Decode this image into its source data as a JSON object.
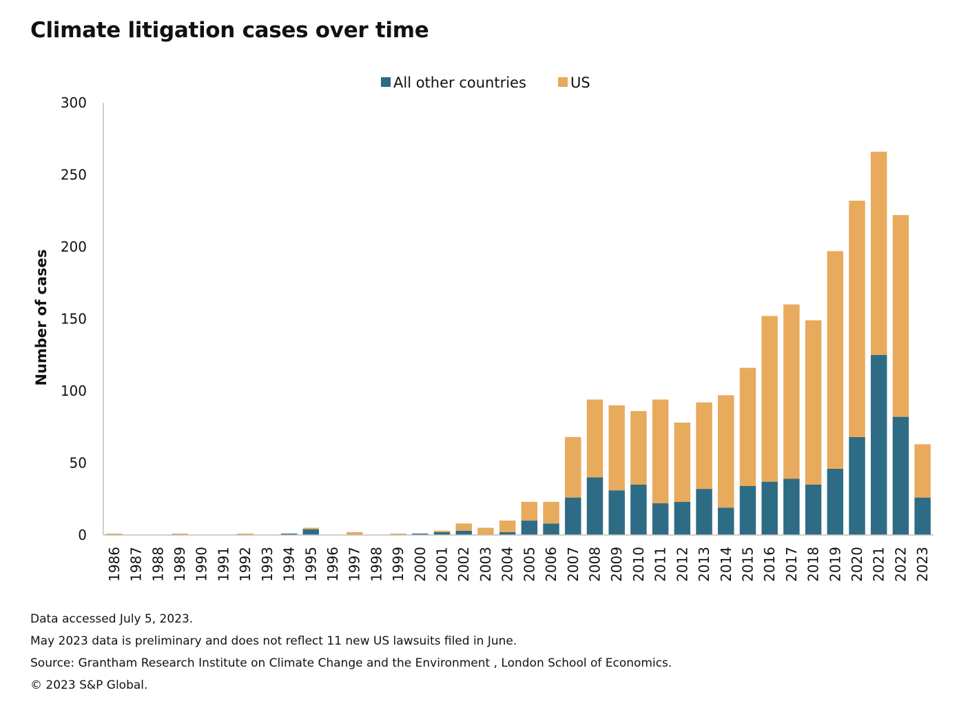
{
  "chart_data": {
    "type": "bar",
    "stacked": true,
    "title": "Climate litigation cases over time",
    "xlabel": "",
    "ylabel": "Number of cases",
    "ylim": [
      0,
      300
    ],
    "yticks": [
      0,
      50,
      100,
      150,
      200,
      250,
      300
    ],
    "legend_position": "top-center",
    "grid": false,
    "categories": [
      "1986",
      "1987",
      "1988",
      "1989",
      "1990",
      "1991",
      "1992",
      "1993",
      "1994",
      "1995",
      "1996",
      "1997",
      "1998",
      "1999",
      "2000",
      "2001",
      "2002",
      "2003",
      "2004",
      "2005",
      "2006",
      "2007",
      "2008",
      "2009",
      "2010",
      "2011",
      "2012",
      "2013",
      "2014",
      "2015",
      "2016",
      "2017",
      "2018",
      "2019",
      "2020",
      "2021",
      "2022",
      "2023"
    ],
    "series": [
      {
        "name": "All other countries",
        "color": "#2e6c85",
        "values": [
          0,
          0,
          0,
          0,
          0,
          0,
          0,
          0,
          1,
          4,
          0,
          0,
          0,
          0,
          1,
          2,
          3,
          0,
          2,
          10,
          8,
          26,
          40,
          31,
          35,
          22,
          23,
          32,
          19,
          34,
          37,
          39,
          35,
          46,
          68,
          125,
          82,
          26
        ]
      },
      {
        "name": "US",
        "color": "#e8aa5c",
        "values": [
          1,
          0,
          0,
          1,
          0,
          0,
          1,
          0,
          0,
          1,
          0,
          2,
          0,
          1,
          0,
          1,
          5,
          5,
          8,
          13,
          15,
          42,
          54,
          59,
          51,
          72,
          55,
          60,
          78,
          82,
          115,
          121,
          114,
          151,
          164,
          141,
          140,
          37
        ]
      }
    ]
  },
  "notes": {
    "accessed": "Data accessed July 5, 2023.",
    "preliminary": "May 2023 data is preliminary and does not reflect 11 new US lawsuits filed in June.",
    "source": "Source: Grantham Research Institute on Climate Change and the Environment , London School of Economics.",
    "copyright": "© 2023 S&P Global."
  }
}
